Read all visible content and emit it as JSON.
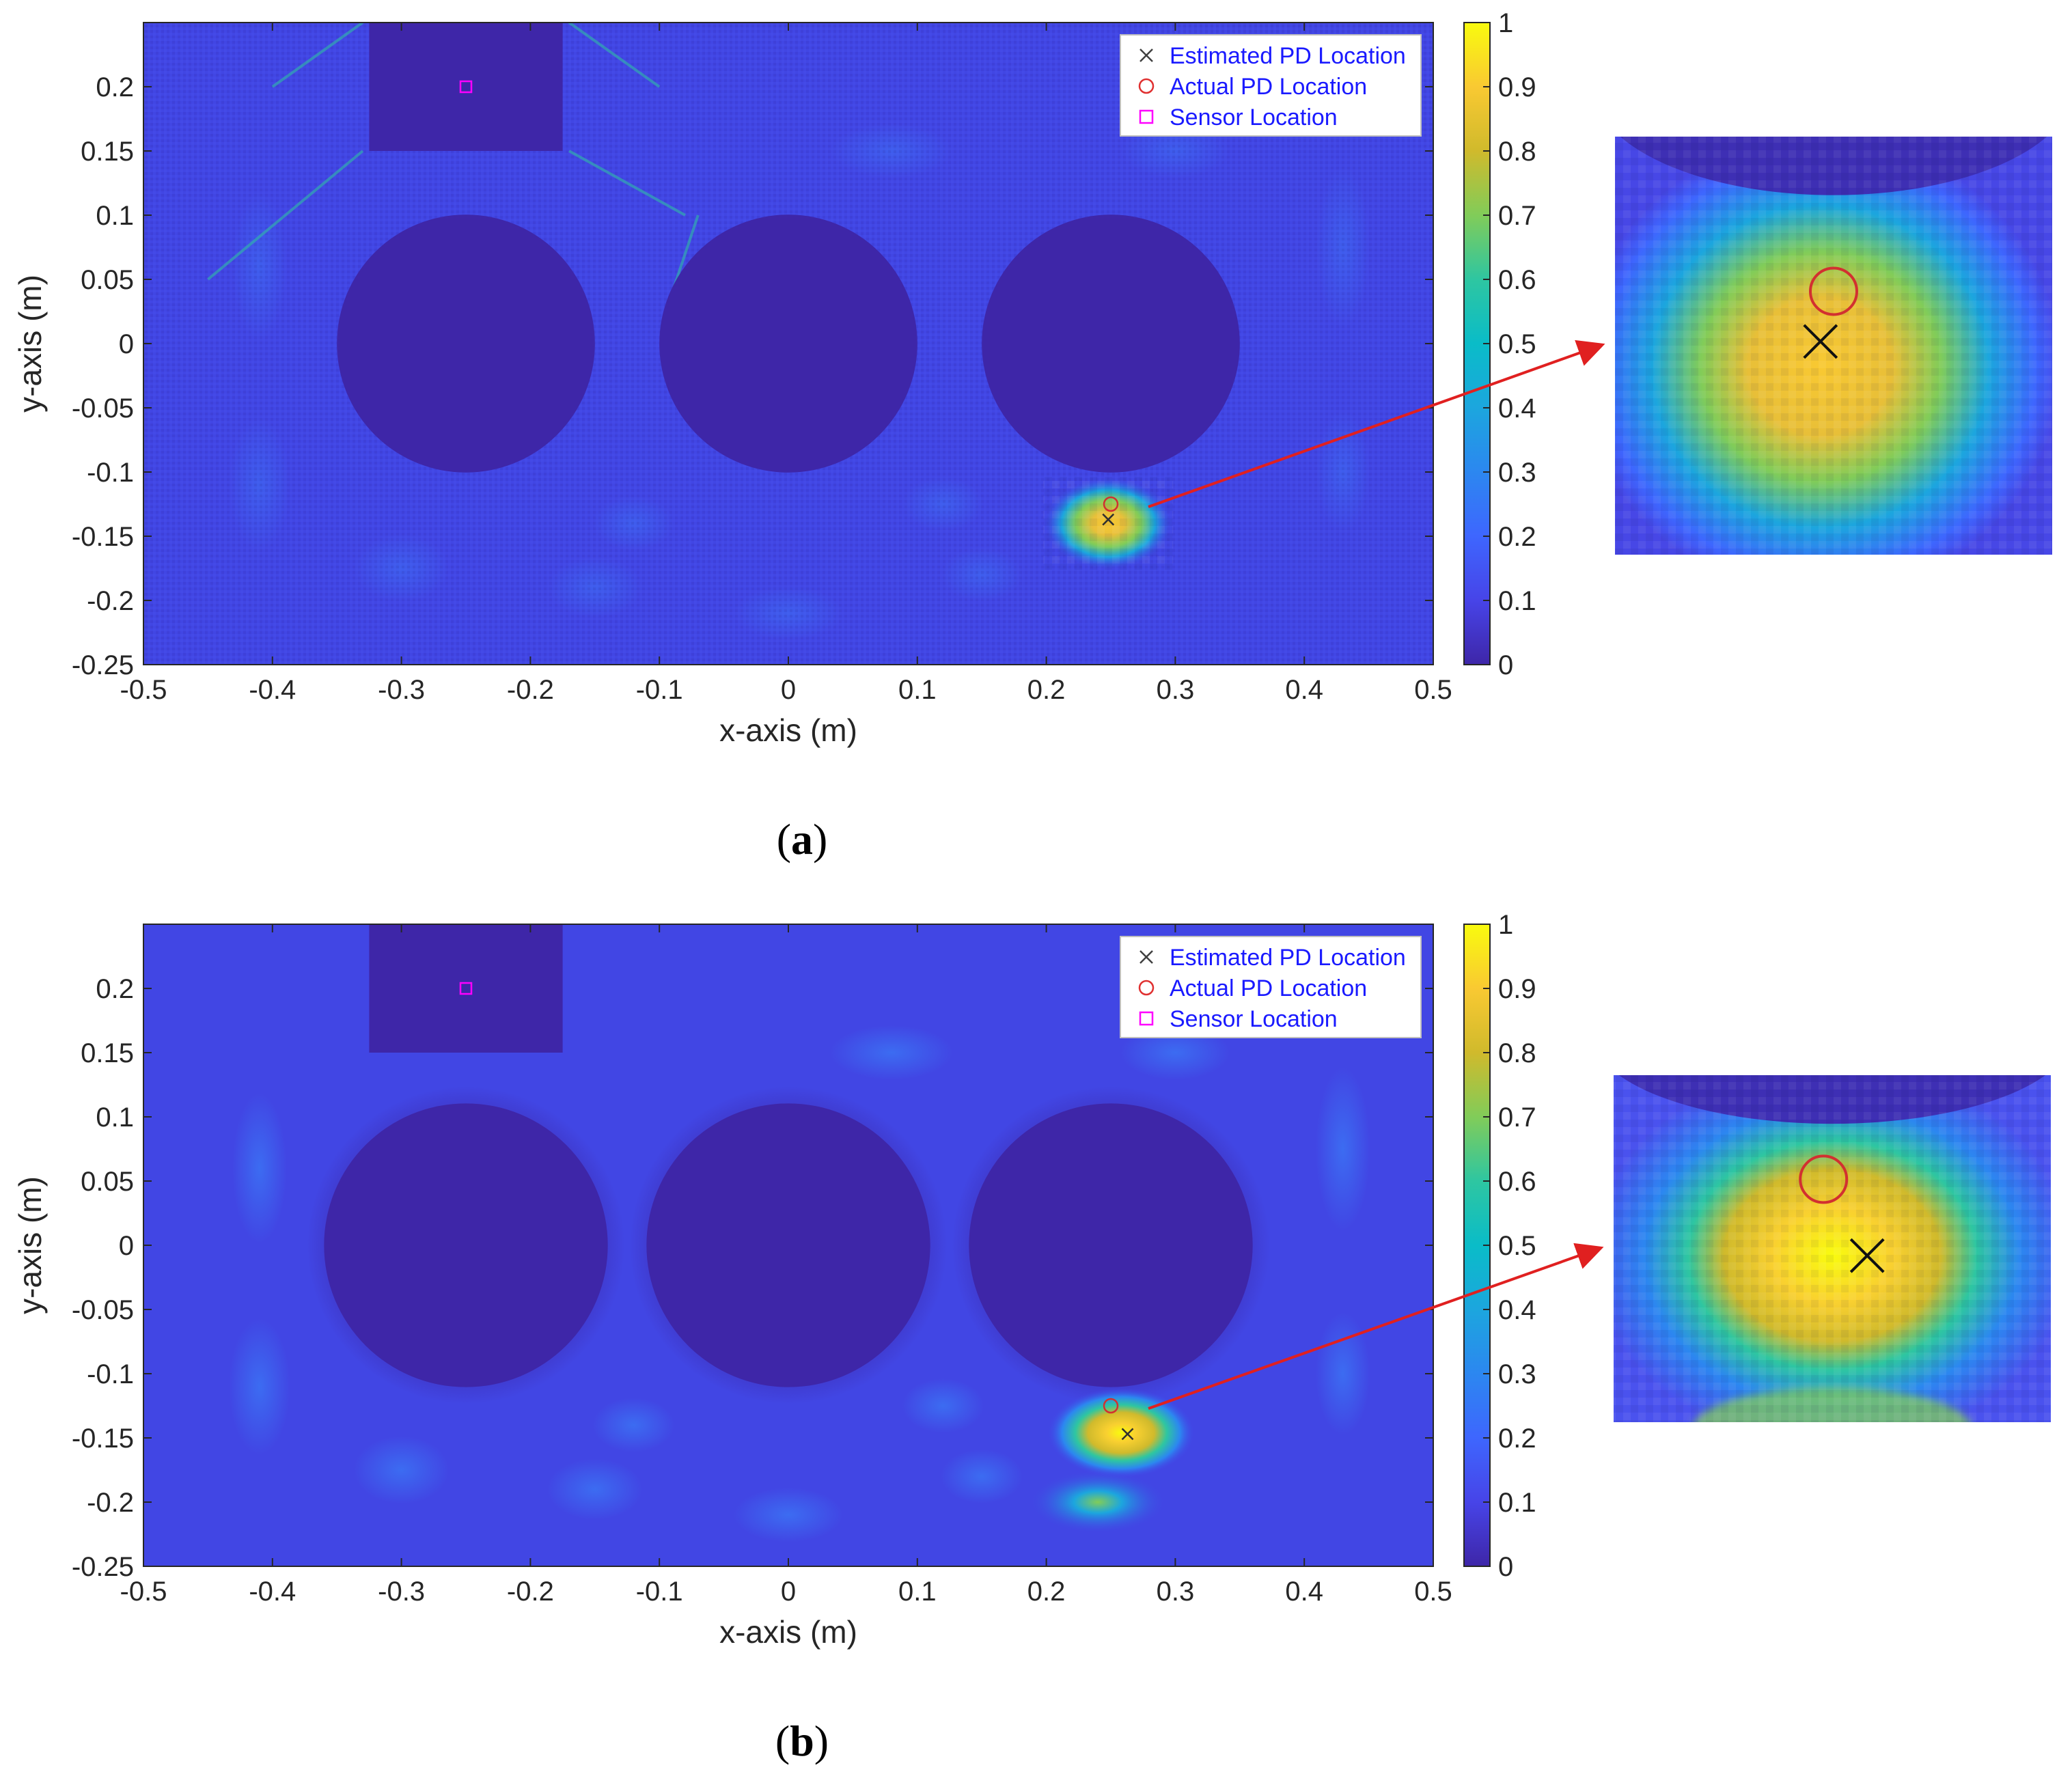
{
  "figure": {
    "panels": [
      {
        "label": "(a)",
        "label_bold": "a"
      },
      {
        "label": "(b)",
        "label_bold": "b"
      }
    ]
  },
  "chart_data": [
    {
      "type": "heatmap",
      "panel": "a",
      "xlabel": "x-axis (m)",
      "ylabel": "y-axis (m)",
      "xlim": [
        -0.5,
        0.5
      ],
      "ylim": [
        -0.25,
        0.25
      ],
      "x_ticks": [
        "-0.5",
        "-0.4",
        "-0.3",
        "-0.2",
        "-0.1",
        "0",
        "0.1",
        "0.2",
        "0.3",
        "0.4",
        "0.5"
      ],
      "y_ticks": [
        "0.2",
        "0.15",
        "0.1",
        "0.05",
        "0",
        "-0.05",
        "-0.1",
        "-0.15",
        "-0.2",
        "-0.25"
      ],
      "colorbar": {
        "min": 0,
        "max": 1,
        "ticks": [
          "1",
          "0.9",
          "0.8",
          "0.7",
          "0.6",
          "0.5",
          "0.4",
          "0.3",
          "0.2",
          "0.1",
          "0"
        ],
        "colormap": "parula"
      },
      "legend": {
        "position": "top-right",
        "entries": [
          {
            "label": "Estimated PD Location",
            "marker": "x",
            "color": "#404040"
          },
          {
            "label": "Actual PD Location",
            "marker": "o",
            "color": "#e03030"
          },
          {
            "label": "Sensor Location",
            "marker": "s",
            "color": "#ff00ff"
          }
        ]
      },
      "sensor": {
        "x": -0.25,
        "y": 0.2
      },
      "sensor_region": {
        "x": [
          -0.325,
          -0.175
        ],
        "y": [
          0.15,
          0.25
        ]
      },
      "obstacles": [
        {
          "cx": -0.25,
          "cy": 0,
          "r": 0.1
        },
        {
          "cx": 0,
          "cy": 0,
          "r": 0.1
        },
        {
          "cx": 0.25,
          "cy": 0,
          "r": 0.1
        }
      ],
      "actual_pd": {
        "x": 0.25,
        "y": -0.125
      },
      "estimated_pd": {
        "x": 0.248,
        "y": -0.137
      },
      "peak": {
        "x": 0.248,
        "y": -0.14,
        "value": 1
      },
      "style": "speckled",
      "zoom_inset": true
    },
    {
      "type": "heatmap",
      "panel": "b",
      "xlabel": "x-axis (m)",
      "ylabel": "y-axis (m)",
      "xlim": [
        -0.5,
        0.5
      ],
      "ylim": [
        -0.25,
        0.25
      ],
      "x_ticks": [
        "-0.5",
        "-0.4",
        "-0.3",
        "-0.2",
        "-0.1",
        "0",
        "0.1",
        "0.2",
        "0.3",
        "0.4",
        "0.5"
      ],
      "y_ticks": [
        "0.2",
        "0.15",
        "0.1",
        "0.05",
        "0",
        "-0.05",
        "-0.1",
        "-0.15",
        "-0.2",
        "-0.25"
      ],
      "colorbar": {
        "min": 0,
        "max": 1,
        "ticks": [
          "1",
          "0.9",
          "0.8",
          "0.7",
          "0.6",
          "0.5",
          "0.4",
          "0.3",
          "0.2",
          "0.1",
          "0"
        ],
        "colormap": "parula"
      },
      "legend": {
        "position": "top-right",
        "entries": [
          {
            "label": "Estimated PD Location",
            "marker": "x",
            "color": "#404040"
          },
          {
            "label": "Actual PD Location",
            "marker": "o",
            "color": "#e03030"
          },
          {
            "label": "Sensor Location",
            "marker": "s",
            "color": "#ff00ff"
          }
        ]
      },
      "sensor": {
        "x": -0.25,
        "y": 0.2
      },
      "sensor_region": {
        "x": [
          -0.325,
          -0.175
        ],
        "y": [
          0.15,
          0.25
        ]
      },
      "obstacles": [
        {
          "cx": -0.25,
          "cy": 0,
          "r": 0.11
        },
        {
          "cx": 0,
          "cy": 0,
          "r": 0.11
        },
        {
          "cx": 0.25,
          "cy": 0,
          "r": 0.11
        }
      ],
      "actual_pd": {
        "x": 0.25,
        "y": -0.125
      },
      "estimated_pd": {
        "x": 0.263,
        "y": -0.147
      },
      "peak": {
        "x": 0.258,
        "y": -0.146,
        "value": 1
      },
      "secondary_lobe": {
        "x": 0.24,
        "y": -0.2,
        "value": 0.55
      },
      "style": "smooth",
      "zoom_inset": true
    }
  ]
}
